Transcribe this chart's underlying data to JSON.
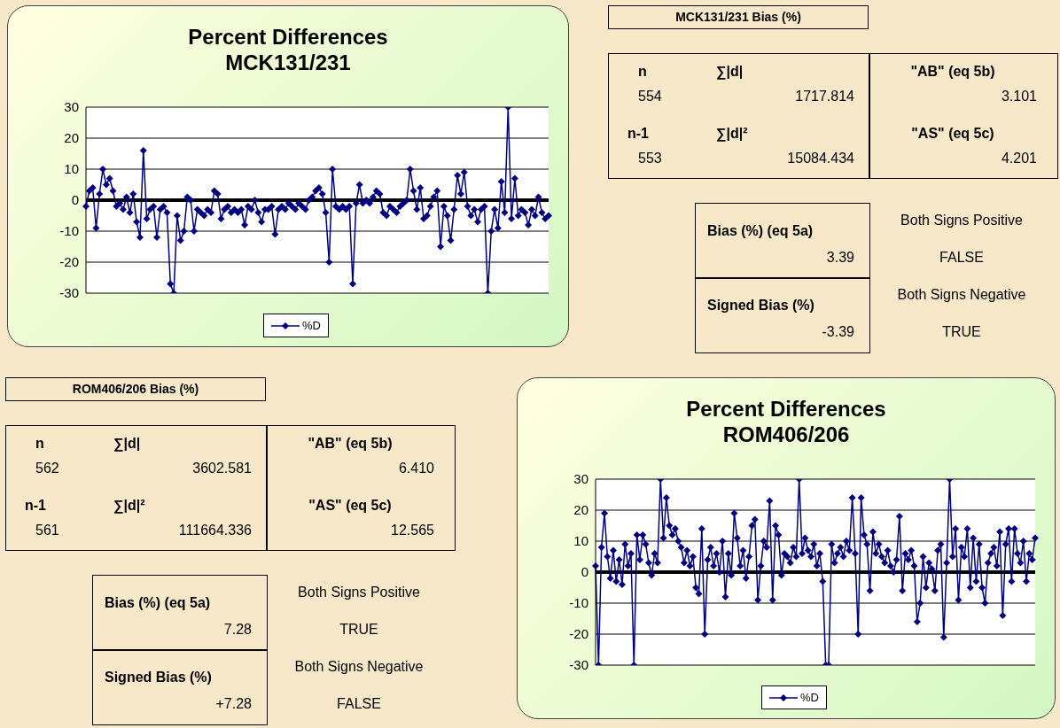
{
  "chart_data": [
    {
      "type": "line",
      "title": "Percent Differences MCK131/231",
      "ylim": [
        -30,
        30
      ],
      "yticks": [
        -30,
        -20,
        -10,
        0,
        10,
        20,
        30
      ],
      "grid": "y",
      "legend": "bottom",
      "marker": "diamond",
      "tick_labels": "y",
      "ref_lines": [
        {
          "axis": "y",
          "value": 0,
          "color": "#000000"
        }
      ],
      "categories": [
        null,
        null,
        null,
        null,
        null,
        null,
        null,
        null,
        null,
        null,
        null,
        null,
        null,
        null,
        null,
        null,
        null,
        null,
        null,
        null,
        null,
        null,
        null,
        null,
        null,
        null,
        null,
        null,
        null,
        null,
        null,
        null,
        null,
        null,
        null,
        null,
        null,
        null,
        null,
        null,
        null,
        null,
        null,
        null,
        null,
        null,
        null,
        null,
        null,
        null,
        null,
        null,
        null,
        null,
        null,
        null,
        null,
        null,
        null,
        null,
        null,
        null,
        null,
        null,
        null,
        null,
        null,
        null,
        null,
        null,
        null,
        null,
        null,
        null,
        null,
        null,
        null,
        null,
        null,
        null,
        null,
        null,
        null,
        null,
        null,
        null,
        null,
        null,
        null,
        null,
        null,
        null,
        null,
        null,
        null,
        null,
        null,
        null,
        null,
        null,
        null,
        null,
        null,
        null,
        null,
        null,
        null,
        null,
        null,
        null,
        null,
        null,
        null,
        null,
        null,
        null,
        null,
        null,
        null,
        null,
        null,
        null,
        null,
        null,
        null,
        null,
        null,
        null,
        null,
        null,
        null,
        null,
        null,
        null,
        null,
        null,
        null,
        null
      ],
      "series": [
        {
          "name": "%D",
          "color": "#000080",
          "values": [
            -2,
            3,
            4,
            -9,
            2,
            10,
            5,
            7,
            3,
            -2,
            -1,
            -3,
            1,
            -4,
            2,
            -7,
            -12,
            16,
            -6,
            -3,
            -2,
            -12,
            -3,
            -2,
            -4,
            -27,
            -30,
            -5,
            -13,
            -10,
            1,
            0,
            -10,
            -3,
            -4,
            -5,
            -3,
            -4,
            3,
            2,
            -6,
            -3,
            -2,
            -4,
            -3,
            -4,
            -3,
            -8,
            -2,
            -3,
            0,
            -4,
            -7,
            -3,
            -3,
            -2,
            -11,
            -3,
            -2,
            -3,
            -1,
            -2,
            -3,
            -1,
            -2,
            -3,
            0,
            1,
            3,
            4,
            2,
            -4,
            -20,
            10,
            -2,
            -3,
            -2,
            -3,
            -2,
            -27,
            -1,
            5,
            -1,
            0,
            -1,
            1,
            3,
            2,
            -4,
            -5,
            -2,
            -3,
            -4,
            -2,
            -1,
            0,
            10,
            3,
            -3,
            4,
            -6,
            -5,
            -2,
            1,
            3,
            -15,
            -2,
            -5,
            -13,
            -3,
            8,
            2,
            9,
            -2,
            -5,
            -3,
            -7,
            -3,
            -2,
            -30,
            -10,
            -3,
            -9,
            6,
            -4,
            30,
            -6,
            7,
            -5,
            -3,
            -4,
            -8,
            -3,
            -5,
            1,
            -4,
            -6,
            -5
          ]
        }
      ]
    },
    {
      "type": "other",
      "title": "MCK131/231  Bias (%)",
      "annotations": [
        "n",
        "∑|d|",
        "\"AB\" (eq 5b)",
        "554",
        "1717.814",
        "3.101",
        "n-1",
        "∑|d|²",
        "\"AS\" (eq 5c)",
        "553",
        "15084.434",
        "4.201",
        "Bias (%) (eq 5a)",
        "3.39",
        "Both Signs Positive",
        "FALSE",
        "Signed Bias (%)",
        "-3.39",
        "Both Signs Negative",
        "TRUE"
      ]
    },
    {
      "type": "other",
      "title": "ROM406/206  Bias (%)",
      "annotations": [
        "n",
        "∑|d|",
        "\"AB\" (eq 5b)",
        "562",
        "3602.581",
        "6.410",
        "n-1",
        "∑|d|²",
        "\"AS\" (eq 5c)",
        "561",
        "111664.336",
        "12.565",
        "Bias (%) (eq 5a)",
        "7.28",
        "Both Signs Positive",
        "TRUE",
        "Signed Bias (%)",
        "+7.28",
        "Both Signs Negative",
        "FALSE"
      ]
    },
    {
      "type": "line",
      "title": "Percent Differences ROM406/206",
      "ylim": [
        -30,
        30
      ],
      "yticks": [
        -30,
        -20,
        -10,
        0,
        10,
        20,
        30
      ],
      "grid": "y",
      "legend": "bottom",
      "marker": "diamond",
      "tick_labels": "y",
      "ref_lines": [
        {
          "axis": "y",
          "value": 0,
          "color": "#000000"
        }
      ],
      "categories": [
        null,
        null,
        null,
        null,
        null,
        null,
        null,
        null,
        null,
        null,
        null,
        null,
        null,
        null,
        null,
        null,
        null,
        null,
        null,
        null,
        null,
        null,
        null,
        null,
        null,
        null,
        null,
        null,
        null,
        null,
        null,
        null,
        null,
        null,
        null,
        null,
        null,
        null,
        null,
        null,
        null,
        null,
        null,
        null,
        null,
        null,
        null,
        null,
        null,
        null,
        null,
        null,
        null,
        null,
        null,
        null,
        null,
        null,
        null,
        null,
        null,
        null,
        null,
        null,
        null,
        null,
        null,
        null,
        null,
        null,
        null,
        null,
        null,
        null,
        null,
        null,
        null,
        null,
        null,
        null,
        null,
        null,
        null,
        null,
        null,
        null,
        null,
        null,
        null,
        null,
        null,
        null,
        null,
        null,
        null,
        null,
        null,
        null,
        null,
        null,
        null,
        null,
        null,
        null,
        null,
        null,
        null,
        null,
        null,
        null,
        null,
        null,
        null,
        null,
        null,
        null,
        null,
        null,
        null,
        null,
        null,
        null,
        null,
        null,
        null,
        null,
        null,
        null,
        null,
        null,
        null,
        null,
        null,
        null,
        null,
        null,
        null,
        null,
        null,
        null,
        null,
        null,
        null,
        null,
        null,
        null,
        null,
        null,
        null,
        null
      ],
      "series": [
        {
          "name": "%D",
          "color": "#000080",
          "values": [
            2,
            -30,
            8,
            19,
            5,
            -2,
            7,
            -3,
            4,
            -4,
            9,
            2,
            6,
            -30,
            12,
            4,
            12,
            9,
            3,
            -1,
            6,
            3,
            30,
            11,
            24,
            15,
            12,
            14,
            10,
            8,
            3,
            7,
            2,
            5,
            -5,
            -7,
            14,
            -20,
            4,
            8,
            2,
            6,
            0,
            10,
            -8,
            6,
            -1,
            19,
            11,
            2,
            7,
            -2,
            5,
            15,
            17,
            -9,
            2,
            10,
            8,
            23,
            -9,
            15,
            12,
            -1,
            6,
            5,
            3,
            8,
            5,
            30,
            6,
            11,
            7,
            5,
            9,
            2,
            6,
            -3,
            -30,
            -30,
            9,
            3,
            6,
            8,
            5,
            10,
            7,
            24,
            6,
            -20,
            24,
            12,
            9,
            -6,
            13,
            6,
            9,
            5,
            3,
            7,
            2,
            0,
            4,
            18,
            -6,
            6,
            4,
            7,
            2,
            -16,
            -10,
            5,
            -5,
            3,
            1,
            -6,
            7,
            9,
            -21,
            3,
            30,
            5,
            14,
            -9,
            8,
            5,
            14,
            -5,
            11,
            -3,
            9,
            -5,
            -10,
            3,
            6,
            8,
            2,
            13,
            -14,
            9,
            14,
            -3,
            14,
            6,
            3,
            10,
            -3,
            6,
            4,
            11
          ]
        }
      ]
    }
  ]
}
